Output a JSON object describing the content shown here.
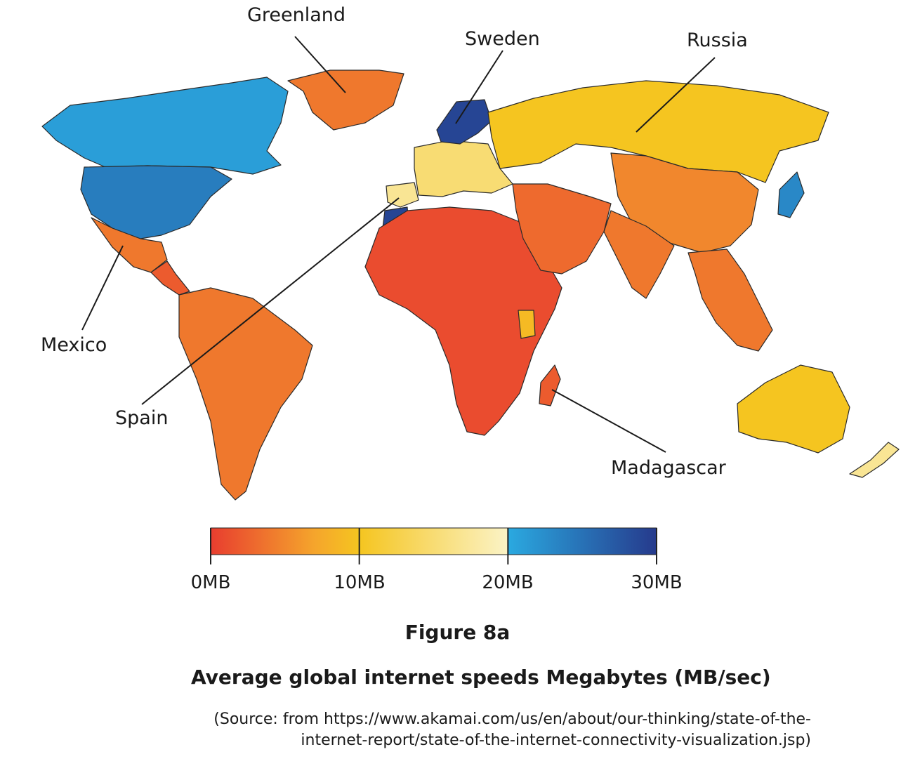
{
  "map": {
    "labels": {
      "greenland": "Greenland",
      "sweden": "Sweden",
      "russia": "Russia",
      "mexico": "Mexico",
      "spain": "Spain",
      "madagascar": "Madagascar"
    },
    "speed_classes": {
      "russia": 10,
      "europe": 15,
      "sweden": 29,
      "greenland": 4,
      "canada": 21,
      "usa": 24,
      "mexico": 4,
      "central_america": 2,
      "south_america": 4,
      "africa": 1,
      "kenya": 9,
      "spain": 17,
      "morocco": 29,
      "middle_east": 3,
      "china": 5,
      "india": 4,
      "southeast_asia": 4,
      "japan": 23,
      "australia": 10,
      "new_zealand": 17,
      "madagascar": 2
    }
  },
  "legend": {
    "ticks": [
      "0MB",
      "10MB",
      "20MB",
      "30MB"
    ],
    "tick_values": [
      0,
      10,
      20,
      30
    ],
    "color_stops": [
      {
        "value": 0,
        "color": "#e83d2f"
      },
      {
        "value": 7,
        "color": "#f5a52c"
      },
      {
        "value": 10,
        "color": "#f5c520"
      },
      {
        "value": 20,
        "color": "#fbf3c6"
      },
      {
        "value": 20.01,
        "color": "#2aa9e0"
      },
      {
        "value": 30,
        "color": "#263a8c"
      }
    ]
  },
  "figure": {
    "title": "Figure 8a",
    "caption": "Average global internet speeds Megabytes (MB/sec)",
    "source_line1": "(Source: from https://www.akamai.com/us/en/about/our-thinking/state-of-the-",
    "source_line2": "internet-report/state-of-the-internet-connectivity-visualization.jsp)"
  }
}
